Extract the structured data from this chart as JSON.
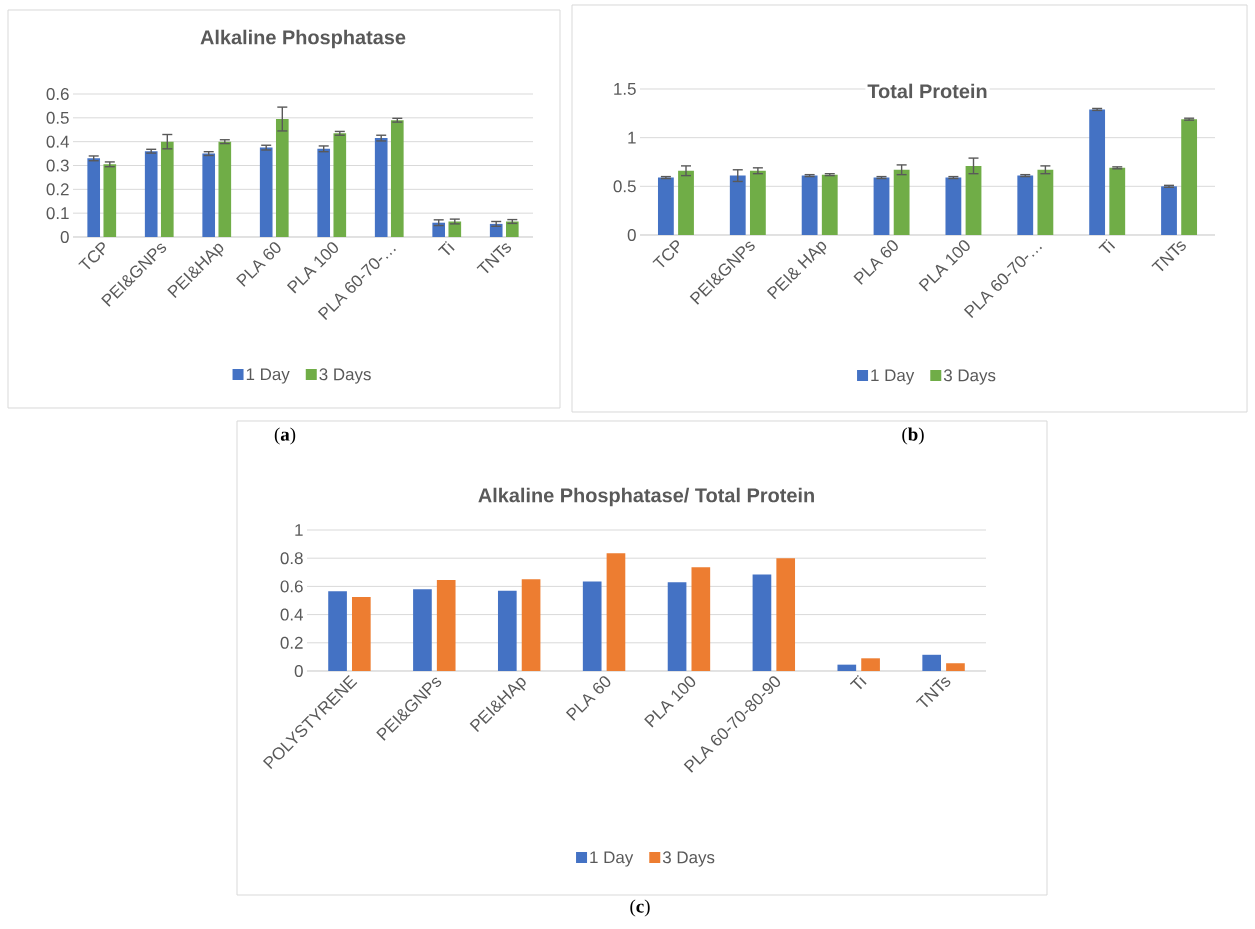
{
  "chart_data": [
    {
      "type": "bar",
      "title": "Alkaline Phosphatase",
      "categories": [
        "TCP",
        "PEI&GNPs",
        "PEI&HAp",
        "PLA 60",
        "PLA 100",
        "PLA 60-70-…",
        "Ti",
        "TNTs"
      ],
      "series": [
        {
          "name": "1 Day",
          "color": "#4472c4",
          "values": [
            0.33,
            0.36,
            0.35,
            0.375,
            0.37,
            0.415,
            0.06,
            0.055
          ],
          "errors": [
            0.01,
            0.008,
            0.008,
            0.01,
            0.012,
            0.012,
            0.012,
            0.01
          ]
        },
        {
          "name": "3 Days",
          "color": "#70ad47",
          "values": [
            0.305,
            0.4,
            0.4,
            0.495,
            0.435,
            0.49,
            0.065,
            0.065
          ],
          "errors": [
            0.01,
            0.03,
            0.008,
            0.05,
            0.008,
            0.008,
            0.01,
            0.008
          ]
        }
      ],
      "ylim": [
        0,
        0.6
      ],
      "yticks": [
        0,
        0.1,
        0.2,
        0.3,
        0.4,
        0.5,
        0.6
      ],
      "grid": "y",
      "legend": "bottom",
      "annotations": [
        "(**a**)"
      ]
    },
    {
      "type": "bar",
      "title": "Total Protein",
      "categories": [
        "TCP",
        "PEI&GNPs",
        "PEI& HAp",
        "PLA 60",
        "PLA 100",
        "PLA 60-70-…",
        "Ti",
        "TNTs"
      ],
      "series": [
        {
          "name": "1 Day",
          "color": "#4472c4",
          "values": [
            0.59,
            0.61,
            0.61,
            0.59,
            0.59,
            0.61,
            1.29,
            0.5
          ],
          "errors": [
            0.01,
            0.06,
            0.01,
            0.01,
            0.01,
            0.01,
            0.01,
            0.01
          ]
        },
        {
          "name": "3 Days",
          "color": "#70ad47",
          "values": [
            0.66,
            0.66,
            0.62,
            0.67,
            0.71,
            0.67,
            0.69,
            1.19
          ],
          "errors": [
            0.05,
            0.03,
            0.01,
            0.05,
            0.08,
            0.04,
            0.01,
            0.01
          ]
        }
      ],
      "ylim": [
        0,
        1.5
      ],
      "yticks": [
        0,
        0.5,
        1,
        1.5
      ],
      "grid": "y",
      "legend": "bottom",
      "annotations": [
        "(**b**)"
      ]
    },
    {
      "type": "bar",
      "title": "Alkaline Phosphatase/ Total Protein",
      "categories": [
        "POLYSTYRENE",
        "PEI&GNPs",
        "PEI&HAp",
        "PLA 60",
        "PLA 100",
        "PLA 60-70-80-90",
        "Ti",
        "TNTs"
      ],
      "series": [
        {
          "name": "1 Day",
          "color": "#4472c4",
          "values": [
            0.565,
            0.58,
            0.57,
            0.635,
            0.63,
            0.685,
            0.045,
            0.115
          ]
        },
        {
          "name": "3 Days",
          "color": "#ed7d31",
          "values": [
            0.525,
            0.645,
            0.65,
            0.835,
            0.735,
            0.8,
            0.09,
            0.055
          ]
        }
      ],
      "ylim": [
        0,
        1
      ],
      "yticks": [
        0,
        0.2,
        0.4,
        0.6,
        0.8,
        1
      ],
      "grid": "y",
      "legend": "bottom",
      "annotations": [
        "(**c**)"
      ]
    }
  ]
}
